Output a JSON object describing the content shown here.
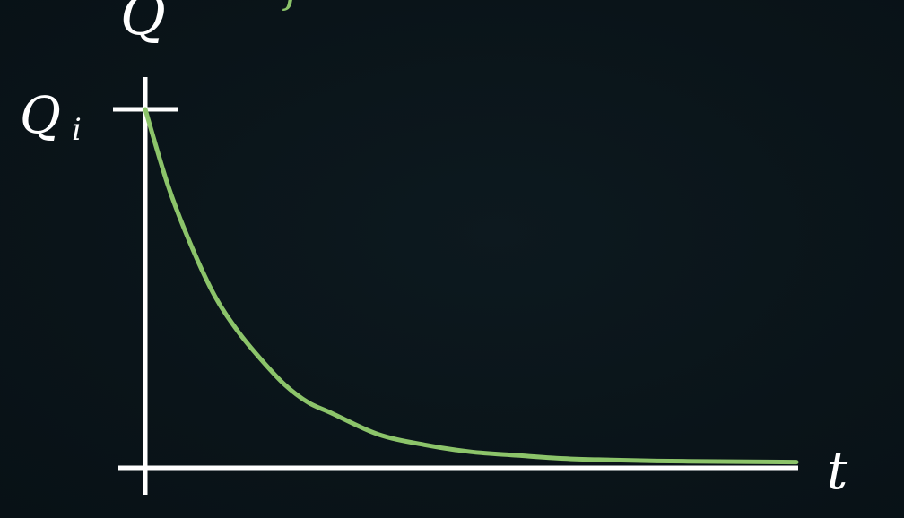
{
  "chart_data": {
    "type": "line",
    "title_fragment": "f(t) ... f",
    "ylabel": "Q",
    "xlabel": "t",
    "y_tick_label": "Q",
    "y_tick_label_subscript": "i",
    "series": [
      {
        "x": [
          0,
          0.25,
          0.5,
          0.75,
          1,
          1.25,
          1.5,
          1.75,
          2,
          2.5,
          3,
          3.5,
          4,
          4.5,
          5,
          5.5,
          6,
          6.5,
          7
        ],
        "values": [
          1,
          0.78,
          0.61,
          0.47,
          0.37,
          0.29,
          0.22,
          0.17,
          0.14,
          0.08,
          0.05,
          0.03,
          0.02,
          0.011,
          0.007,
          0.004,
          0.003,
          0.002,
          0.001
        ]
      }
    ],
    "xlim": [
      0,
      7
    ],
    "ylim": [
      0,
      1
    ],
    "grid": false,
    "colors": {
      "curve": "#8cc46a",
      "axes": "#ffffff",
      "title": "#8cc46a",
      "background": "#0b151b"
    }
  }
}
